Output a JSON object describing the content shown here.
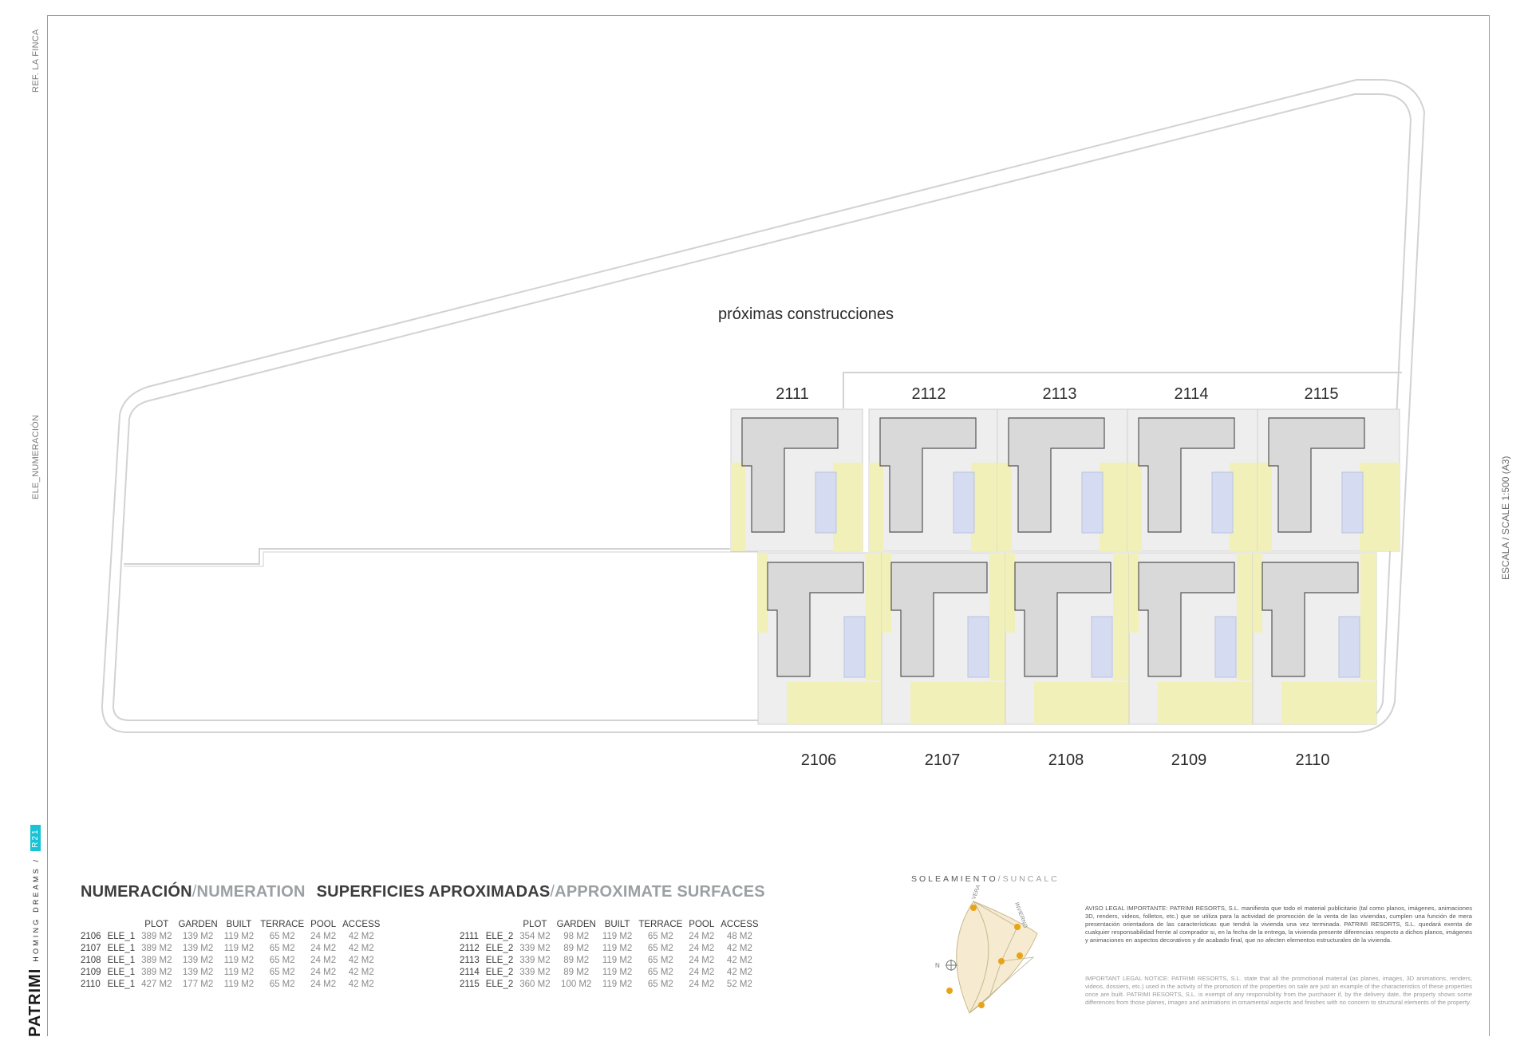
{
  "side": {
    "ref": "REF. LA FINCA",
    "element": "ELE_NUMERACIÓN",
    "scale": "ESCALA / SCALE 1:500 (A3)"
  },
  "brand": {
    "logo": "PATRIMI",
    "tagline": "HOMING DREAMS /",
    "code": "R21"
  },
  "plan": {
    "future_label": "próximas construcciones",
    "top_plots": [
      "2111",
      "2112",
      "2113",
      "2114",
      "2115"
    ],
    "bottom_plots": [
      "2106",
      "2107",
      "2108",
      "2109",
      "2110"
    ],
    "colors": {
      "garden": "#f1f0b8",
      "house": "#d9d9d9",
      "pool": "#d5dcf1",
      "terrace": "#eeeeee",
      "outline": "#c9c9c9"
    }
  },
  "heading": {
    "numeration_es": "NUMERACIÓN",
    "numeration_en": "NUMERATION",
    "surfaces_es": "SUPERFICIES APROXIMADAS",
    "surfaces_en": "APPROXIMATE SURFACES"
  },
  "columns": [
    "PLOT",
    "GARDEN",
    "BUILT",
    "TERRACE",
    "POOL",
    "ACCESS"
  ],
  "rows_left": [
    {
      "num": "2106",
      "type": "ELE_1",
      "plot": "389 M2",
      "garden": "139 M2",
      "built": "119 M2",
      "terrace": "65 M2",
      "pool": "24 M2",
      "access": "42 M2"
    },
    {
      "num": "2107",
      "type": "ELE_1",
      "plot": "389 M2",
      "garden": "139 M2",
      "built": "119 M2",
      "terrace": "65 M2",
      "pool": "24 M2",
      "access": "42 M2"
    },
    {
      "num": "2108",
      "type": "ELE_1",
      "plot": "389 M2",
      "garden": "139 M2",
      "built": "119 M2",
      "terrace": "65 M2",
      "pool": "24 M2",
      "access": "42 M2"
    },
    {
      "num": "2109",
      "type": "ELE_1",
      "plot": "389 M2",
      "garden": "139 M2",
      "built": "119 M2",
      "terrace": "65 M2",
      "pool": "24 M2",
      "access": "42 M2"
    },
    {
      "num": "2110",
      "type": "ELE_1",
      "plot": "427 M2",
      "garden": "177 M2",
      "built": "119 M2",
      "terrace": "65 M2",
      "pool": "24 M2",
      "access": "42 M2"
    }
  ],
  "rows_right": [
    {
      "num": "2111",
      "type": "ELE_2",
      "plot": "354 M2",
      "garden": "98 M2",
      "built": "119 M2",
      "terrace": "65 M2",
      "pool": "24 M2",
      "access": "48 M2"
    },
    {
      "num": "2112",
      "type": "ELE_2",
      "plot": "339 M2",
      "garden": "89 M2",
      "built": "119 M2",
      "terrace": "65 M2",
      "pool": "24 M2",
      "access": "42 M2"
    },
    {
      "num": "2113",
      "type": "ELE_2",
      "plot": "339 M2",
      "garden": "89 M2",
      "built": "119 M2",
      "terrace": "65 M2",
      "pool": "24 M2",
      "access": "42 M2"
    },
    {
      "num": "2114",
      "type": "ELE_2",
      "plot": "339 M2",
      "garden": "89 M2",
      "built": "119 M2",
      "terrace": "65 M2",
      "pool": "24 M2",
      "access": "42 M2"
    },
    {
      "num": "2115",
      "type": "ELE_2",
      "plot": "360 M2",
      "garden": "100 M2",
      "built": "119 M2",
      "terrace": "65 M2",
      "pool": "24 M2",
      "access": "52 M2"
    }
  ],
  "sun": {
    "title_es": "SOLEAMIENTO",
    "title_en": "/SUNCALC",
    "label_verano": "VERANO",
    "label_invierno": "INVIERNO",
    "label_north": "N"
  },
  "legal": {
    "es": "AVISO LEGAL IMPORTANTE: PATRIMI RESORTS, S.L. manifiesta que todo el material publicitario (tal como planos, imágenes, animaciones 3D, renders, videos, folletos, etc.) que se utiliza para la actividad de promoción de la venta de las viviendas, cumplen una función de mera presentación orientadora de las características que tendrá la vivienda una vez terminada. PATRIMI RESORTS, S.L. quedará exenta de cualquier responsabilidad frente al comprador si, en la fecha de la entrega, la vivienda presente diferencias respecto a dichos planos, imágenes y animaciones en aspectos decorativos y de acabado final, que no afecten elementos estructurales de la vivienda.",
    "en": "IMPORTANT LEGAL NOTICE: PATRIMI RESORTS, S.L. state that all the promotional material (as planes, images, 3D animations, renders, videos, dossiers, etc.) used in the activity of the promotion of the properties on sale are just an example of the characteristics of these properties once are built. PATRIMI RESORTS, S.L. is exempt of any responsibility from the purchaser if, by the delivery date, the property shows some differences from those planes, images and animations in ornamental aspects and finishes with no concern to structural elements of the property."
  }
}
